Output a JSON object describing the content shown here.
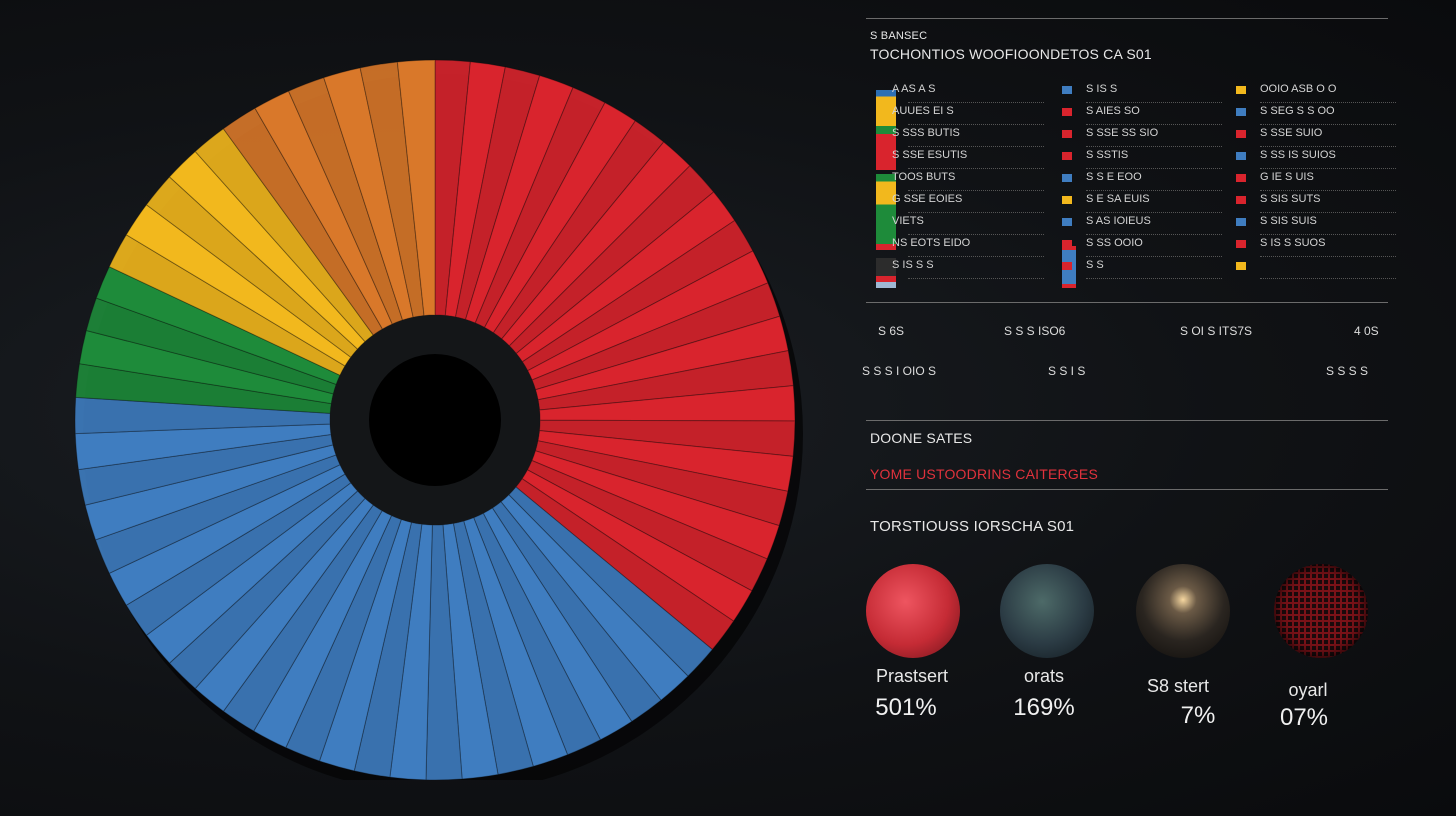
{
  "chart_data": {
    "type": "pie",
    "style": "donut",
    "categories": [
      "red",
      "blue",
      "green",
      "yellow",
      "orange"
    ],
    "values": [
      36,
      40,
      6,
      8,
      10
    ],
    "colors": [
      "#d9242d",
      "#3f7dc0",
      "#1e8b3a",
      "#f2b81d",
      "#d9782a"
    ]
  },
  "panel": {
    "header_small": "S BANSEC",
    "header_title": "TOCHONTIOS WOOFIOONDETOS CA S01",
    "legend": {
      "col1": [
        "A  AS A S",
        "AUUES EI S",
        "S SSS BUTIS",
        "S SSE ESUTIS",
        "TOOS BUTS",
        "G SSE EOIES",
        "VIETS",
        "NS EOTS EIDO",
        "S IS S S"
      ],
      "col2": [
        "S IS  S",
        "S AIES SO",
        "S SSE SS SIO",
        "S SSTIS",
        "S S E EOO",
        "S E SA EUIS",
        "S AS IOIEUS",
        "S SS OOIO",
        "S S"
      ],
      "col3": [
        "OOIO ASB O O",
        "S SEG S S OO",
        "S SSE SUIO",
        "S SS IS SUIOS",
        "G IE S UIS",
        "S SIS SUTS",
        "S SIS SUIS",
        "S IS S SUOS",
        ""
      ]
    },
    "axis_row1": [
      "S 6S",
      "S S S ISO6",
      "S OI S ITS7S",
      "4 0S"
    ],
    "axis_row2": [
      "S S S I OIO S",
      "S S I S",
      "S S  S S"
    ],
    "section1": "DOONE SATES",
    "section2": "YOME USTOODRINS CAITERGES",
    "section3": "TORSTIOUSS IORSCHA S01",
    "stats": [
      {
        "name": "Prastsert",
        "value": "501%"
      },
      {
        "name": "orats",
        "value": "169%"
      },
      {
        "name": "S8 stert",
        "value": "7%"
      },
      {
        "name": "oyarl",
        "value": "07%"
      }
    ]
  }
}
